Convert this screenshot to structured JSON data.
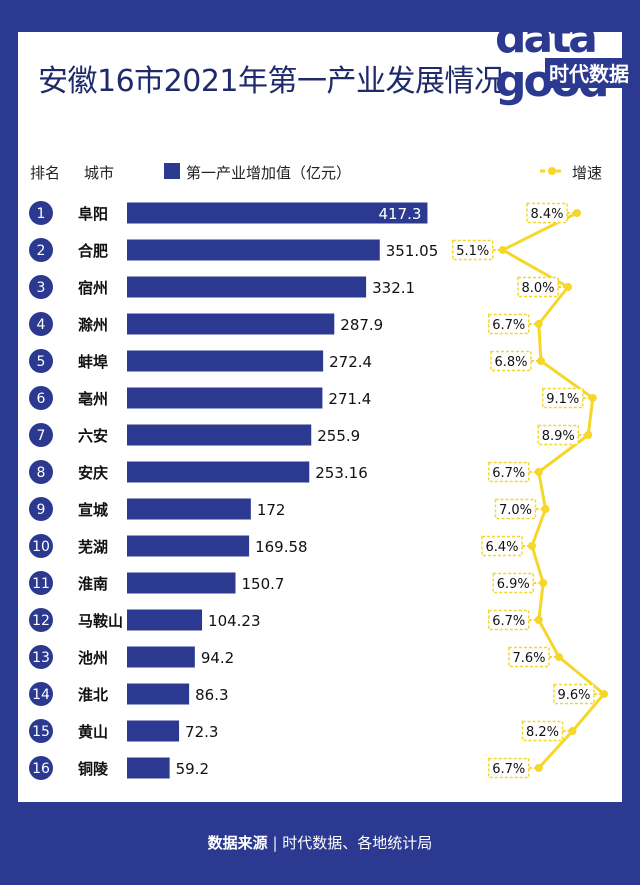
{
  "title": "安徽16市2021年第一产业发展情况",
  "logo": {
    "top_text": "data",
    "bottom_text": "good",
    "brand": "时代数据"
  },
  "headers": {
    "rank": "排名",
    "city": "城市",
    "value_legend": "第一产业增加值（亿元）",
    "growth_legend": "增速"
  },
  "colors": {
    "bar": "#2b3990",
    "line": "#f5d72a",
    "background": "#2b3990"
  },
  "footer": {
    "label": "数据来源",
    "source": "时代数据、各地统计局"
  },
  "chart_data": {
    "type": "bar",
    "categories": [
      "阜阳",
      "合肥",
      "宿州",
      "滁州",
      "蚌埠",
      "亳州",
      "六安",
      "安庆",
      "宣城",
      "芜湖",
      "淮南",
      "马鞍山",
      "池州",
      "淮北",
      "黄山",
      "铜陵"
    ],
    "ranks": [
      "1",
      "2",
      "3",
      "4",
      "5",
      "6",
      "7",
      "8",
      "9",
      "10",
      "11",
      "12",
      "13",
      "14",
      "15",
      "16"
    ],
    "series": [
      {
        "name": "第一产业增加值（亿元）",
        "type": "bar",
        "values": [
          417.3,
          351.05,
          332.1,
          287.9,
          272.4,
          271.4,
          255.9,
          253.16,
          172,
          169.58,
          150.7,
          104.23,
          94.2,
          86.3,
          72.3,
          59.2
        ],
        "labels": [
          "417.3",
          "351.05",
          "332.1",
          "287.9",
          "272.4",
          "271.4",
          "255.9",
          "253.16",
          "172",
          "169.58",
          "150.7",
          "104.23",
          "94.2",
          "86.3",
          "72.3",
          "59.2"
        ]
      },
      {
        "name": "增速",
        "type": "line",
        "unit": "%",
        "values": [
          8.4,
          5.1,
          8.0,
          6.7,
          6.8,
          9.1,
          8.9,
          6.7,
          7.0,
          6.4,
          6.9,
          6.7,
          7.6,
          9.6,
          8.2,
          6.7
        ],
        "labels": [
          "8.4%",
          "5.1%",
          "8.0%",
          "6.7%",
          "6.8%",
          "9.1%",
          "8.9%",
          "6.7%",
          "7.0%",
          "6.4%",
          "6.9%",
          "6.7%",
          "7.6%",
          "9.6%",
          "8.2%",
          "6.7%"
        ]
      }
    ],
    "legend_position": "top",
    "grid": false
  }
}
